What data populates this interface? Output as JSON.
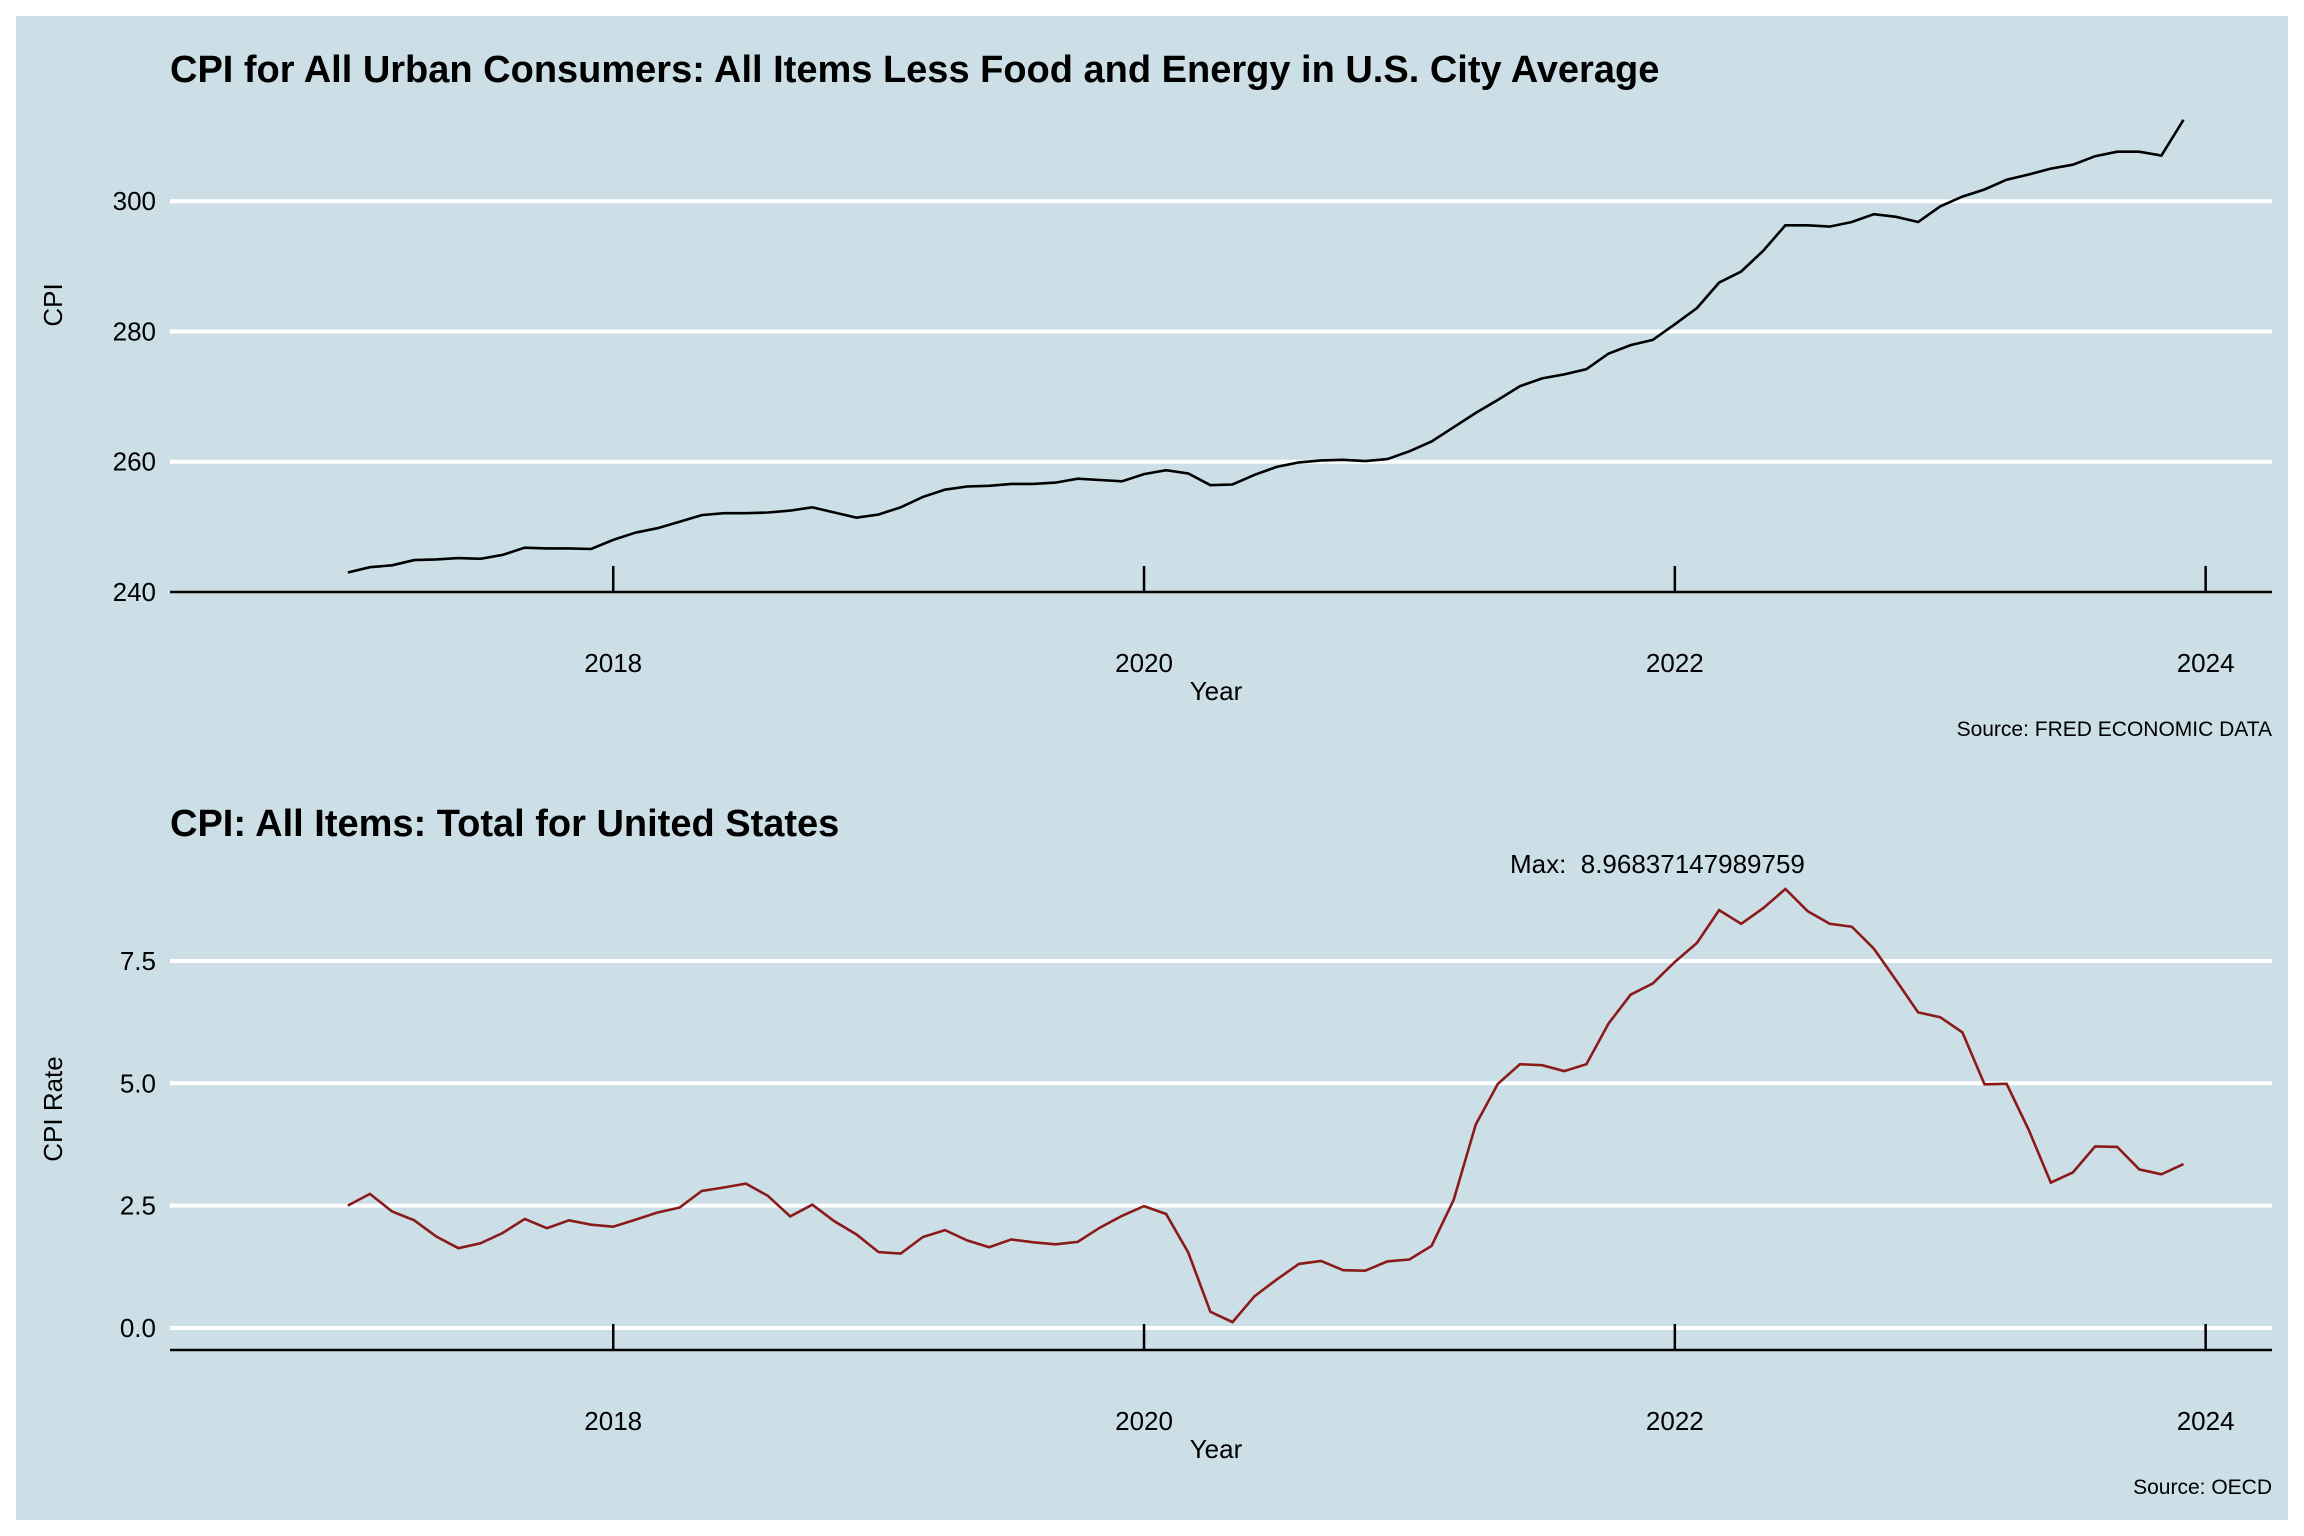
{
  "colors": {
    "background": "#cddfe6",
    "grid": "#ffffff",
    "axis": "#000000",
    "series_top": "#000000",
    "series_bottom": "#8b1a1a"
  },
  "chart_data": [
    {
      "type": "line",
      "title": "CPI for All Urban Consumers: All Items Less Food and Energy in U.S. City Average",
      "xlabel": "Year",
      "ylabel": "CPI",
      "caption": "Source: FRED ECONOMIC DATA",
      "xlim": [
        2016.33,
        2024.25
      ],
      "ylim": [
        240,
        314
      ],
      "x_ticks": [
        2018,
        2020,
        2022,
        2024
      ],
      "x_tick_labels": [
        "2018",
        "2020",
        "2022",
        "2024"
      ],
      "y_ticks": [
        240,
        260,
        280,
        300
      ],
      "y_tick_labels": [
        "240",
        "260",
        "280",
        "300"
      ],
      "grid": "horizontal",
      "legend": "none",
      "x_start": 2017.0,
      "x_step": 0.0833333,
      "values": [
        243.0,
        243.8,
        244.1,
        244.9,
        245.0,
        245.2,
        245.1,
        245.7,
        246.8,
        246.7,
        246.7,
        246.6,
        248.0,
        249.1,
        249.8,
        250.8,
        251.8,
        252.1,
        252.1,
        252.2,
        252.5,
        253.0,
        252.2,
        251.4,
        251.9,
        253.0,
        254.6,
        255.7,
        256.2,
        256.3,
        256.6,
        256.6,
        256.8,
        257.4,
        257.2,
        257.0,
        258.1,
        258.7,
        258.2,
        256.4,
        256.5,
        258.0,
        259.2,
        259.9,
        260.2,
        260.3,
        260.1,
        260.4,
        261.6,
        263.1,
        265.3,
        267.5,
        269.5,
        271.6,
        272.8,
        273.4,
        274.2,
        276.6,
        277.9,
        278.7,
        281.1,
        283.6,
        287.5,
        289.2,
        292.4,
        296.3,
        296.3,
        296.1,
        296.8,
        298.0,
        297.6,
        296.8,
        299.2,
        300.7,
        301.8,
        303.3,
        304.1,
        305.0,
        305.6,
        306.9,
        307.6,
        307.6,
        307.0,
        312.5
      ]
    },
    {
      "type": "line",
      "title": "CPI: All Items: Total for United States",
      "xlabel": "Year",
      "ylabel": "CPI Rate",
      "caption": "Source: OECD",
      "annotation": "Max:  8.96837147989759",
      "xlim": [
        2016.33,
        2024.25
      ],
      "ylim": [
        -0.45,
        9.4
      ],
      "x_ticks": [
        2018,
        2020,
        2022,
        2024
      ],
      "x_tick_labels": [
        "2018",
        "2020",
        "2022",
        "2024"
      ],
      "y_ticks": [
        0.0,
        2.5,
        5.0,
        7.5
      ],
      "y_tick_labels": [
        "0.0",
        "2.5",
        "5.0",
        "7.5"
      ],
      "grid": "horizontal",
      "legend": "none",
      "x_start": 2017.0,
      "x_step": 0.0833333,
      "values": [
        2.5,
        2.74,
        2.38,
        2.2,
        1.87,
        1.63,
        1.73,
        1.94,
        2.23,
        2.04,
        2.2,
        2.11,
        2.07,
        2.21,
        2.36,
        2.46,
        2.8,
        2.87,
        2.95,
        2.7,
        2.28,
        2.52,
        2.18,
        1.91,
        1.55,
        1.52,
        1.86,
        2.0,
        1.79,
        1.65,
        1.81,
        1.75,
        1.71,
        1.76,
        2.05,
        2.29,
        2.49,
        2.33,
        1.54,
        0.33,
        0.12,
        0.65,
        0.99,
        1.31,
        1.37,
        1.18,
        1.17,
        1.36,
        1.4,
        1.68,
        2.62,
        4.16,
        4.99,
        5.39,
        5.37,
        5.25,
        5.39,
        6.22,
        6.81,
        7.04,
        7.48,
        7.87,
        8.54,
        8.26,
        8.58,
        8.97,
        8.52,
        8.26,
        8.2,
        7.75,
        7.11,
        6.45,
        6.35,
        6.04,
        4.98,
        4.99,
        4.05,
        2.97,
        3.18,
        3.71,
        3.7,
        3.24,
        3.14,
        3.35
      ]
    }
  ]
}
